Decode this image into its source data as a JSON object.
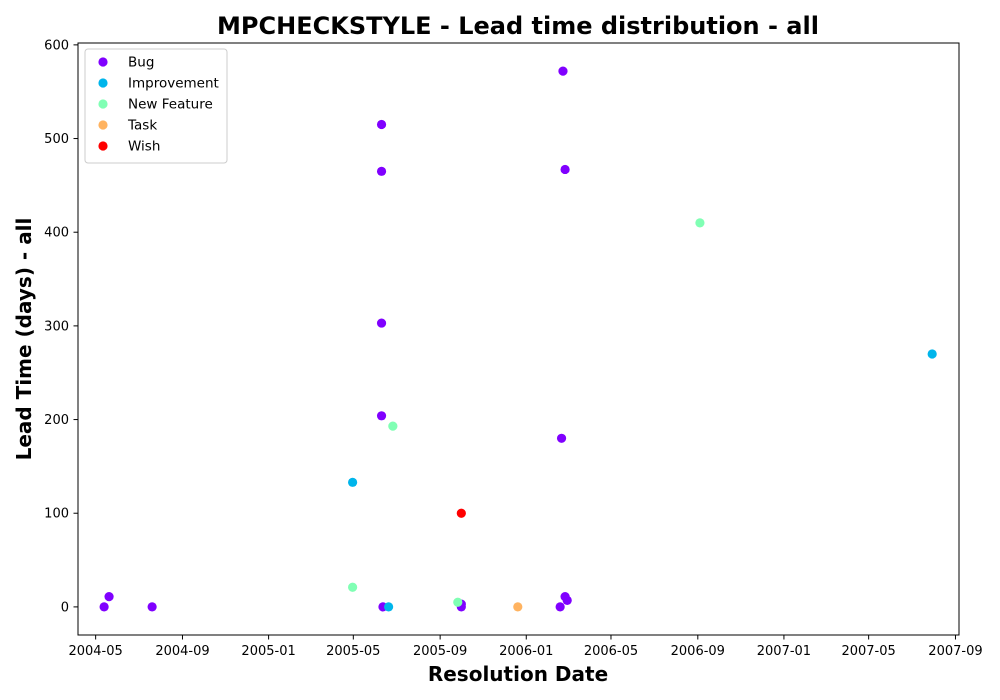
{
  "chart_data": {
    "type": "scatter",
    "title": "MPCHECKSTYLE - Lead time distribution - all",
    "xlabel": "Resolution Date",
    "ylabel": "Lead Time (days) - all",
    "x_scale": "date",
    "xlim": [
      "2004-04-06",
      "2007-09-06"
    ],
    "ylim": [
      -30,
      602
    ],
    "x_ticks": [
      "2004-05",
      "2004-09",
      "2005-01",
      "2005-05",
      "2005-09",
      "2006-01",
      "2006-05",
      "2006-09",
      "2007-01",
      "2007-05",
      "2007-09"
    ],
    "y_ticks": [
      0,
      100,
      200,
      300,
      400,
      500,
      600
    ],
    "grid": false,
    "legend_position": "top-left",
    "series": [
      {
        "name": "Bug",
        "color": "#8000ff",
        "points": [
          {
            "x": "2004-05-13",
            "y": 0
          },
          {
            "x": "2004-05-20",
            "y": 11
          },
          {
            "x": "2004-07-20",
            "y": 0
          },
          {
            "x": "2005-06-10",
            "y": 515
          },
          {
            "x": "2005-06-10",
            "y": 465
          },
          {
            "x": "2005-06-10",
            "y": 303
          },
          {
            "x": "2005-06-10",
            "y": 204
          },
          {
            "x": "2005-06-12",
            "y": 0
          },
          {
            "x": "2005-10-01",
            "y": 0
          },
          {
            "x": "2005-10-01",
            "y": 3
          },
          {
            "x": "2006-02-20",
            "y": 180
          },
          {
            "x": "2006-02-18",
            "y": 0
          },
          {
            "x": "2006-02-22",
            "y": 572
          },
          {
            "x": "2006-02-25",
            "y": 467
          },
          {
            "x": "2006-02-25",
            "y": 11
          },
          {
            "x": "2006-02-28",
            "y": 7
          }
        ]
      },
      {
        "name": "Improvement",
        "color": "#00b5eb",
        "points": [
          {
            "x": "2005-04-30",
            "y": 133
          },
          {
            "x": "2005-06-20",
            "y": 0
          },
          {
            "x": "2007-07-30",
            "y": 270
          }
        ]
      },
      {
        "name": "New Feature",
        "color": "#80ffb4",
        "points": [
          {
            "x": "2005-04-30",
            "y": 21
          },
          {
            "x": "2005-06-26",
            "y": 193
          },
          {
            "x": "2005-09-26",
            "y": 5
          },
          {
            "x": "2006-09-04",
            "y": 410
          }
        ]
      },
      {
        "name": "Task",
        "color": "#ffb360",
        "points": [
          {
            "x": "2005-12-20",
            "y": 0
          }
        ]
      },
      {
        "name": "Wish",
        "color": "#ff0000",
        "points": [
          {
            "x": "2005-10-01",
            "y": 100
          }
        ]
      }
    ]
  }
}
